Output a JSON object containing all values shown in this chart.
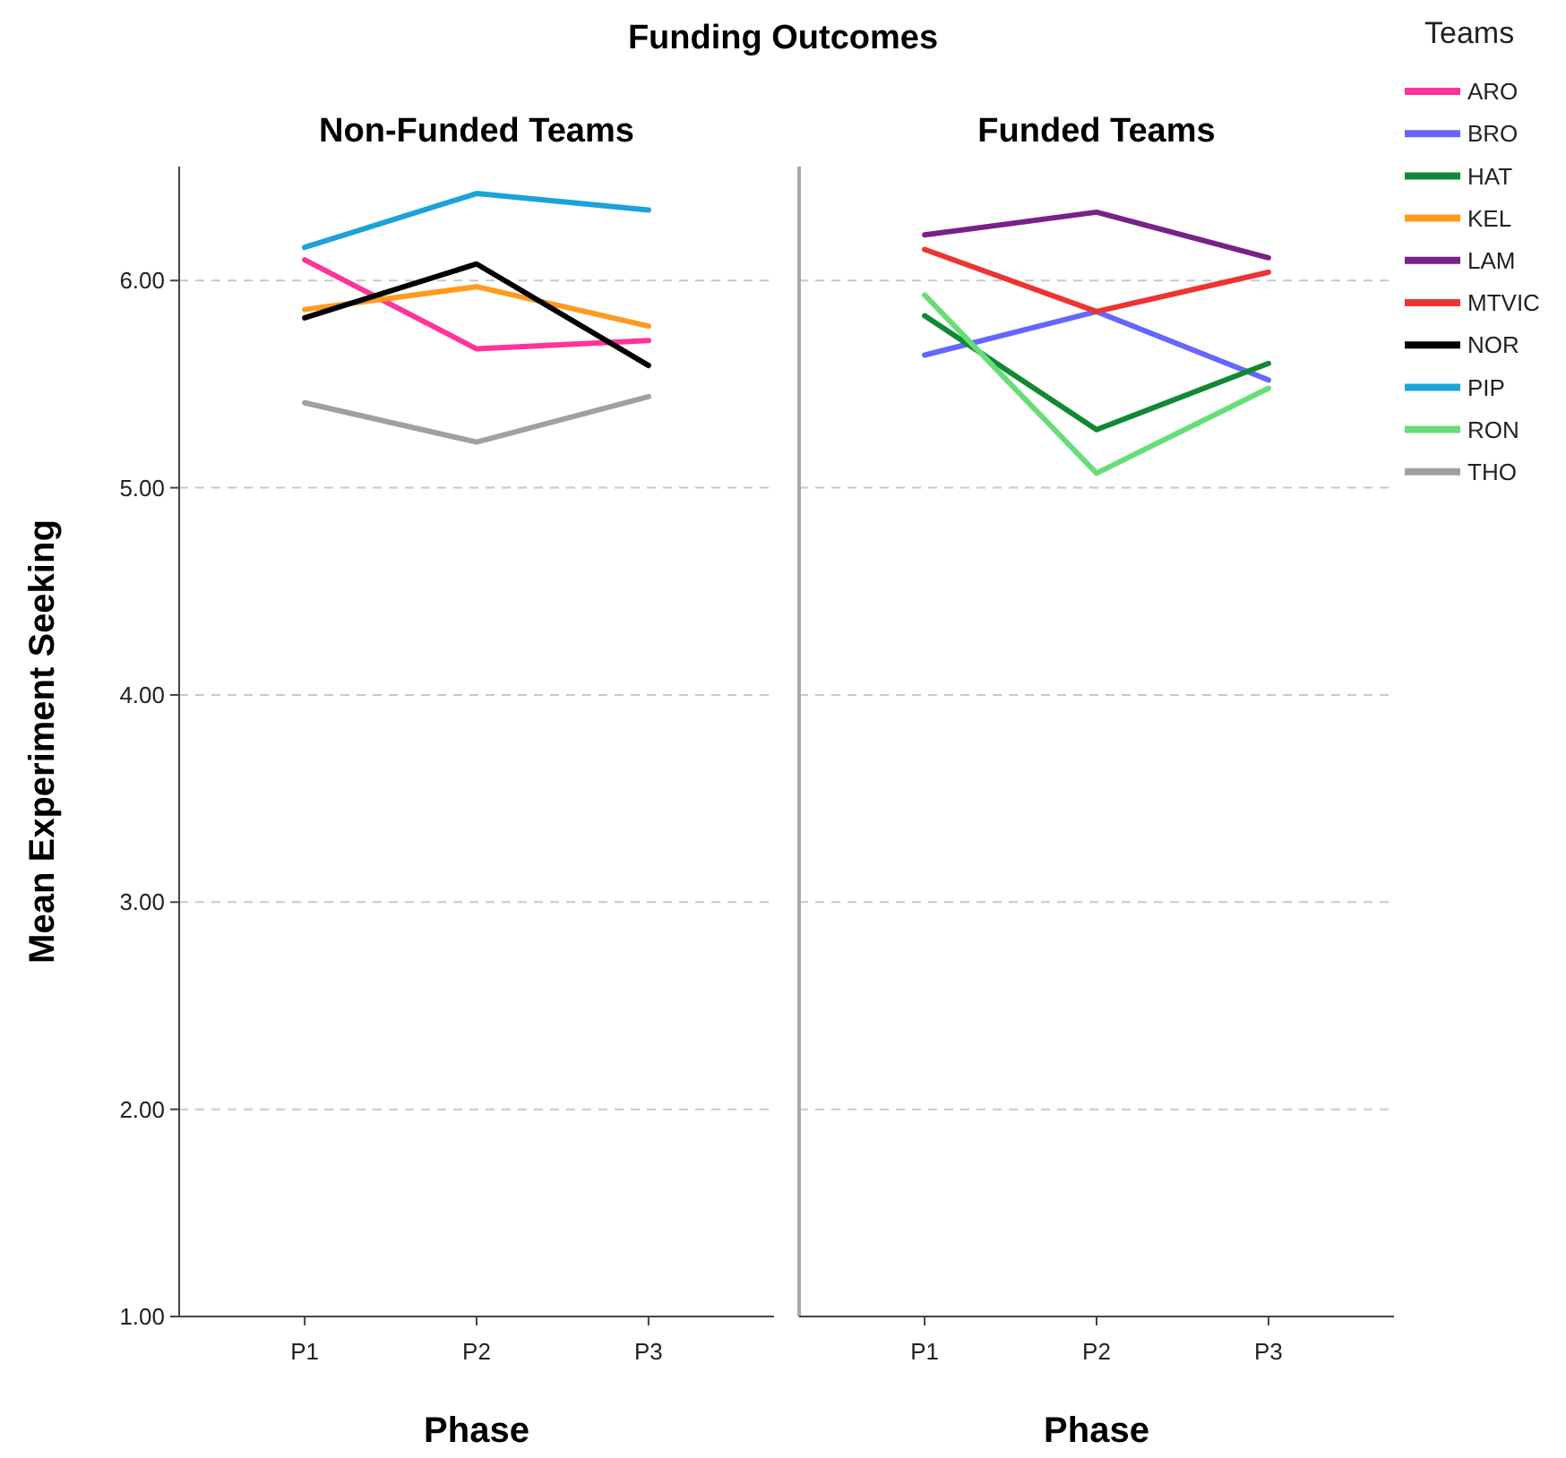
{
  "chart_data": [
    {
      "type": "line",
      "title": "Funding Outcomes",
      "subtitle": "Non-Funded Teams",
      "xlabel": "Phase",
      "ylabel": "Mean Experiment Seeking",
      "categories": [
        "P1",
        "P2",
        "P3"
      ],
      "ylim": [
        1,
        6.55
      ],
      "yticks": [
        {
          "value": 1,
          "label": "1.00"
        },
        {
          "value": 2,
          "label": "2.00"
        },
        {
          "value": 3,
          "label": "3.00"
        },
        {
          "value": 4,
          "label": "4.00"
        },
        {
          "value": 5,
          "label": "5.00"
        },
        {
          "value": 6,
          "label": "6.00"
        }
      ],
      "grid": "y",
      "legend": "right",
      "line_style": "solid",
      "series": [
        {
          "name": "ARO",
          "color": "#ff3399",
          "values": [
            6.1,
            5.67,
            5.71
          ]
        },
        {
          "name": "KEL",
          "color": "#ff9a1e",
          "values": [
            5.86,
            5.97,
            5.78
          ]
        },
        {
          "name": "NOR",
          "color": "#000000",
          "values": [
            5.82,
            6.08,
            5.59
          ]
        },
        {
          "name": "PIP",
          "color": "#1aa3d9",
          "values": [
            6.16,
            6.42,
            6.34
          ]
        },
        {
          "name": "THO",
          "color": "#a0a0a0",
          "values": [
            5.41,
            5.22,
            5.44
          ]
        }
      ]
    },
    {
      "type": "line",
      "title": "Funded Teams",
      "xlabel": "Phase",
      "legend_title": "Teams",
      "categories": [
        "P1",
        "P2",
        "P3"
      ],
      "ylim": [
        1,
        6.55
      ],
      "yticks": [
        1,
        2,
        3,
        4,
        5,
        6
      ],
      "tick_labels": "x",
      "grid": "y",
      "legend": "right",
      "line_style": "solid",
      "series": [
        {
          "name": "BRO",
          "color": "#6666ff",
          "values": [
            5.64,
            5.85,
            5.52
          ]
        },
        {
          "name": "HAT",
          "color": "#118833",
          "values": [
            5.83,
            5.28,
            5.6
          ]
        },
        {
          "name": "LAM",
          "color": "#772288",
          "values": [
            6.22,
            6.33,
            6.11
          ]
        },
        {
          "name": "MTVIC",
          "color": "#ee3333",
          "values": [
            6.15,
            5.85,
            6.04
          ]
        },
        {
          "name": "RON",
          "color": "#66dd77",
          "values": [
            5.93,
            5.07,
            5.48
          ]
        }
      ]
    }
  ]
}
